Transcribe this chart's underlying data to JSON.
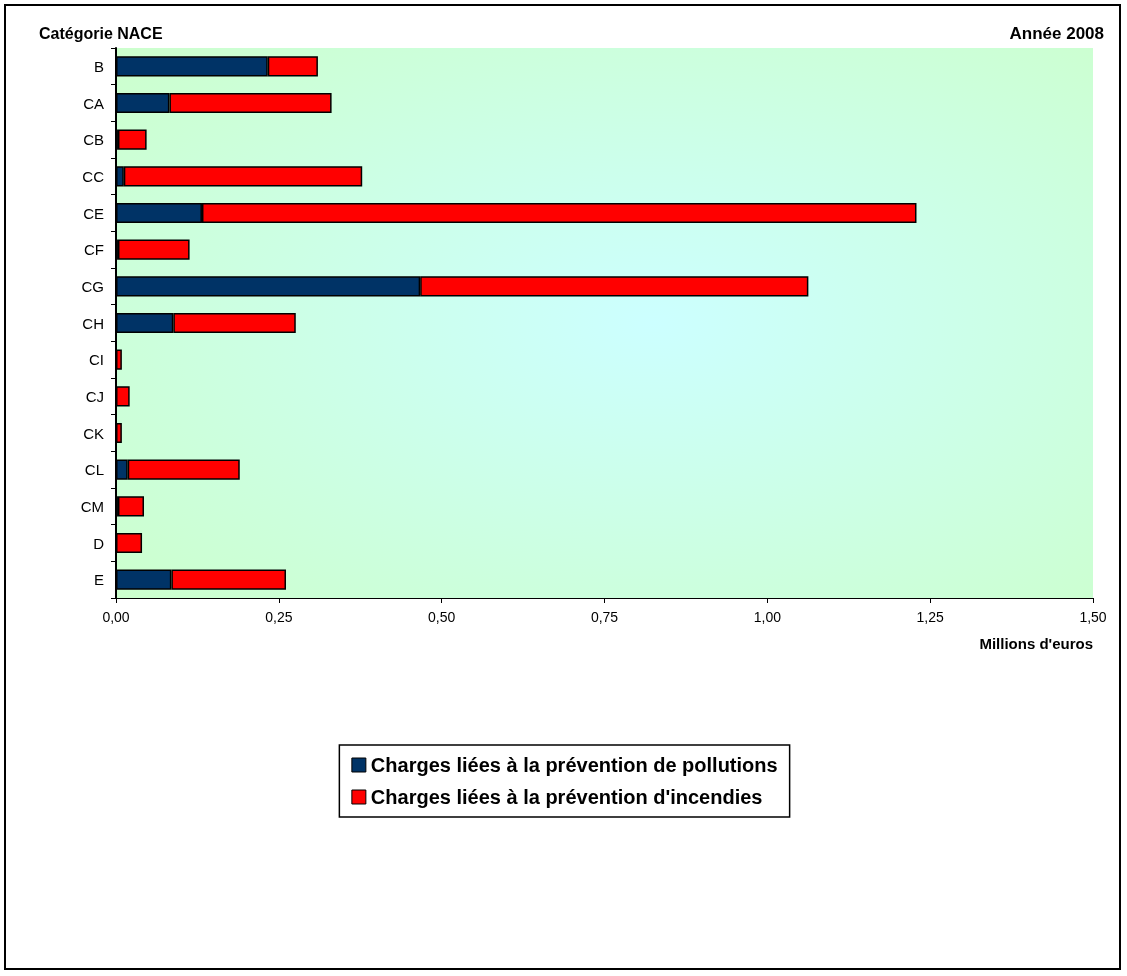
{
  "chart_data": {
    "type": "bar",
    "orientation": "horizontal",
    "stacked": true,
    "title": "Année 2008",
    "ylabel": "Catégorie NACE",
    "xlabel": "Millions d'euros",
    "categories": [
      "B",
      "CA",
      "CB",
      "CC",
      "CE",
      "CF",
      "CG",
      "CH",
      "CI",
      "CJ",
      "CK",
      "CL",
      "CM",
      "D",
      "E"
    ],
    "series": [
      {
        "name": "Charges liées à la prévention de pollutions",
        "color": "#003366",
        "values": [
          0.233,
          0.082,
          0.003,
          0.012,
          0.132,
          0.003,
          0.467,
          0.088,
          0,
          0,
          0,
          0.018,
          0.003,
          0,
          0.085
        ]
      },
      {
        "name": "Charges liées à la prévention d'incendies",
        "color": "#ff0000",
        "values": [
          0.077,
          0.249,
          0.044,
          0.366,
          1.097,
          0.11,
          0.596,
          0.188,
          0.009,
          0.021,
          0.009,
          0.172,
          0.04,
          0.04,
          0.176
        ]
      }
    ],
    "xlim": [
      0,
      1.5
    ],
    "xticks": [
      {
        "value": 0,
        "label": "0,00"
      },
      {
        "value": 0.25,
        "label": "0,25"
      },
      {
        "value": 0.5,
        "label": "0,50"
      },
      {
        "value": 0.75,
        "label": "0,75"
      },
      {
        "value": 1,
        "label": "1,00"
      },
      {
        "value": 1.25,
        "label": "1,25"
      },
      {
        "value": 1.5,
        "label": "1,50"
      }
    ],
    "grid": false,
    "legend": "bottom"
  }
}
